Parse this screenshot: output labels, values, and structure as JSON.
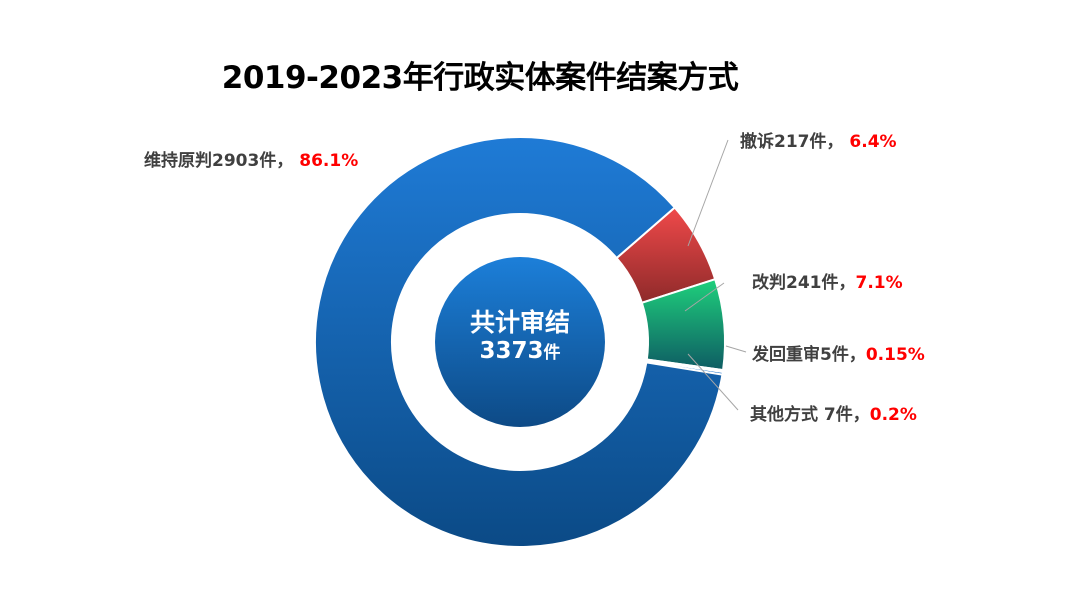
{
  "chart_data": {
    "type": "pie",
    "title": "2019-2023年行政实体案件结案方式",
    "donut_center": {
      "line1": "共计审结",
      "total": "3373",
      "unit": "件"
    },
    "slices": [
      {
        "name": "维持原判",
        "count": 2903,
        "count_text": "2903件，",
        "percent": 86.1,
        "percent_text": "86.1%",
        "color": "#1a6fc7"
      },
      {
        "name": "撤诉",
        "count": 217,
        "count_text": "217件，",
        "percent": 6.4,
        "percent_text": "6.4%",
        "color": "#e03e3e"
      },
      {
        "name": "改判",
        "count": 241,
        "count_text": "241件，",
        "percent": 7.1,
        "percent_text": "7.1%",
        "color": "#22b673"
      },
      {
        "name": "发回重审",
        "count": 5,
        "count_text": "5件，",
        "percent": 0.15,
        "percent_text": "0.15%",
        "color": "#2e8fe0"
      },
      {
        "name": "其他方式",
        "count": 7,
        "count_text": " 7件，",
        "percent": 0.2,
        "percent_text": "0.2%",
        "color": "#1a6fc7"
      }
    ]
  }
}
